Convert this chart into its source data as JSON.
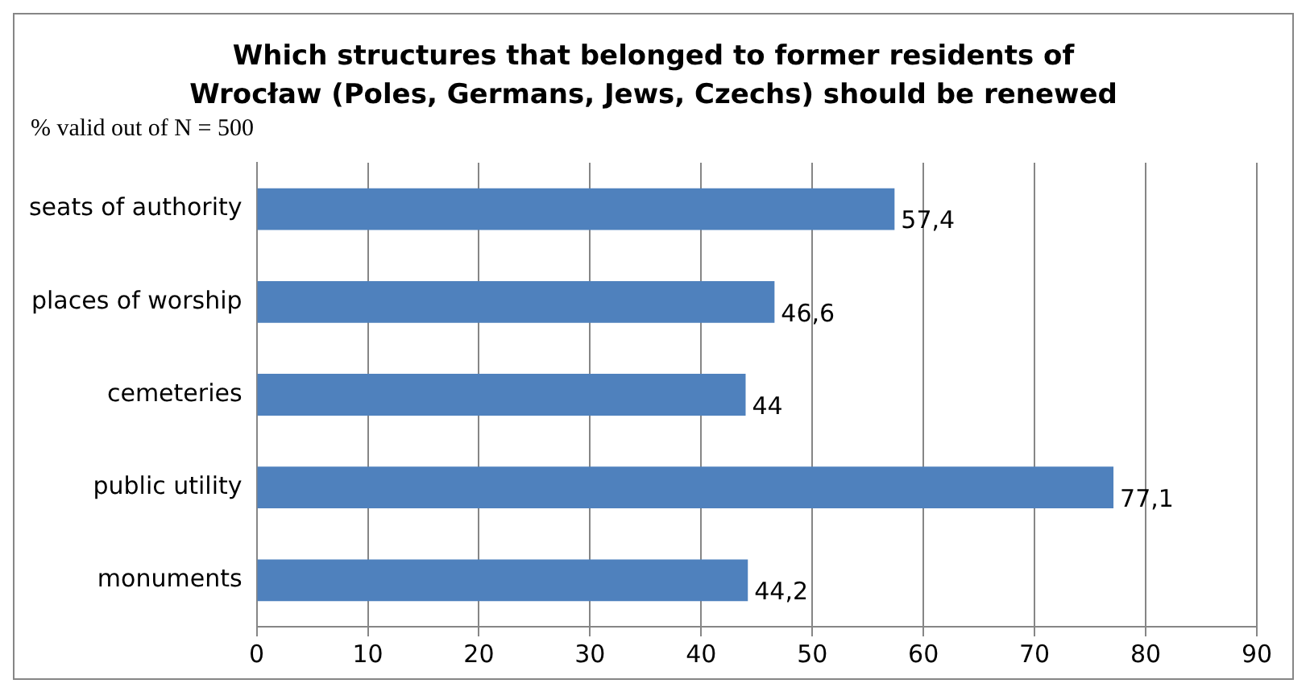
{
  "chart_data": {
    "type": "bar",
    "orientation": "horizontal",
    "title": "Which structures that belonged to former residents of Wrocław (Poles, Germans, Jews, Czechs) should be renewed",
    "subtitle": "% valid out of N = 500",
    "categories": [
      "seats of authority",
      "places of worship",
      "cemeteries",
      "public utility",
      "monuments"
    ],
    "values": [
      57.4,
      46.6,
      44,
      77.1,
      44.2
    ],
    "value_labels": [
      "57,4",
      "46,6",
      "44",
      "77,1",
      "44,2"
    ],
    "color": "#4f81bd",
    "xlim": [
      0,
      90
    ],
    "xticks": [
      0,
      10,
      20,
      30,
      40,
      50,
      60,
      70,
      80,
      90
    ],
    "grid": "x",
    "legend": false
  }
}
